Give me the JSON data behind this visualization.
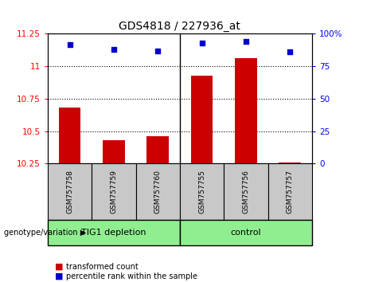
{
  "title": "GDS4818 / 227936_at",
  "samples": [
    "GSM757758",
    "GSM757759",
    "GSM757760",
    "GSM757755",
    "GSM757756",
    "GSM757757"
  ],
  "group_labels": [
    "TIG1 depletion",
    "control"
  ],
  "bar_values": [
    10.68,
    10.43,
    10.46,
    10.93,
    11.06,
    10.26
  ],
  "scatter_values": [
    11.17,
    11.13,
    11.12,
    11.18,
    11.19,
    11.11
  ],
  "bar_color": "#cc0000",
  "scatter_color": "#0000cc",
  "ymin": 10.25,
  "ymax": 11.25,
  "yticks": [
    10.25,
    10.5,
    10.75,
    11.0,
    11.25
  ],
  "ytick_labels": [
    "10.25",
    "10.5",
    "10.75",
    "11",
    "11.25"
  ],
  "y2min": 0,
  "y2max": 100,
  "y2ticks": [
    0,
    25,
    50,
    75,
    100
  ],
  "y2tick_labels": [
    "0",
    "25",
    "50",
    "75",
    "100%"
  ],
  "hlines": [
    10.5,
    10.75,
    11.0
  ],
  "legend_red": "transformed count",
  "legend_blue": "percentile rank within the sample",
  "genotype_label": "genotype/variation",
  "group_separator": 3,
  "n_samples": 6,
  "green": "#90EE90",
  "grey": "#c8c8c8"
}
